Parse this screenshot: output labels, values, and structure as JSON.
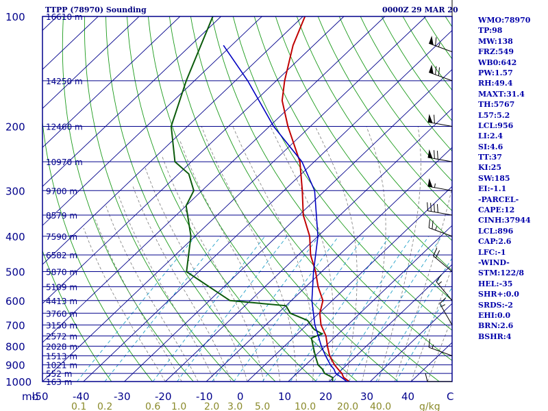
{
  "header": {
    "title": "TTPP (78970) Sounding",
    "time": "0000Z 29 MAR 20"
  },
  "indices": [
    "WMO:78970",
    "TP:98",
    "MW:138",
    "FRZ:549",
    "WB0:642",
    "PW:1.57",
    "RH:49.4",
    "MAXT:31.4",
    "TH:5767",
    "L57:5.2",
    "LCL:956",
    "LI:2.4",
    "SI:4.6",
    "TT:37",
    "KI:25",
    "SW:185",
    "EI:-1.1",
    "-PARCEL-",
    "CAPE:12",
    "CINH:37944",
    "LCL:896",
    "CAP:2.6",
    "LFC:-1",
    "-WIND-",
    "STM:122/8",
    "HEL:-35",
    "SHR+:0.0",
    "SRDS:-2",
    "EHI:0.0",
    "BRN:2.6",
    "BSHR:4"
  ],
  "colors": {
    "frame": "#00008b",
    "isobar": "#00008b",
    "isotherm": "#00008b",
    "dry_adiabat": "#1a9a1a",
    "moist_adiabat": "#7a7a7a",
    "mixing_ratio": "#20a0c8",
    "temperature": "#c00000",
    "dewpoint": "#0a5a0a",
    "parcel": "#0000c0",
    "axis_text": "#00008b",
    "mixing_text": "#8a8a2a"
  },
  "chart_data": {
    "type": "line",
    "title": "TTPP (78970) Sounding",
    "xlabel": "C",
    "ylabel": "mb",
    "xlim": [
      -50,
      50
    ],
    "ylim": [
      1000,
      100
    ],
    "y_scale": "log",
    "skew": true,
    "pressure_ticks": [
      100,
      200,
      300,
      400,
      500,
      600,
      700,
      800,
      900,
      1000
    ],
    "temperature_ticks": [
      "-50",
      "-40",
      "-30",
      "-20",
      "-10",
      "0",
      "10",
      "20",
      "30",
      "40"
    ],
    "mixing_ratio_labels": [
      "0.1",
      "0.2",
      "0.6",
      "1.0",
      "2.0",
      "3.0",
      "5.0",
      "10.0",
      "20.0",
      "40.0",
      "g/kg"
    ],
    "height_labels": [
      {
        "p": 100,
        "h": "16610 m"
      },
      {
        "p": 150,
        "h": "14250 m"
      },
      {
        "p": 200,
        "h": "12460 m"
      },
      {
        "p": 250,
        "h": "10970 m"
      },
      {
        "p": 300,
        "h": "9700 m"
      },
      {
        "p": 350,
        "h": "8579 m"
      },
      {
        "p": 400,
        "h": "7590 m"
      },
      {
        "p": 450,
        "h": "6582 m"
      },
      {
        "p": 500,
        "h": "5870 m"
      },
      {
        "p": 550,
        "h": "5109 m"
      },
      {
        "p": 600,
        "h": "4413 m"
      },
      {
        "p": 650,
        "h": "3760 m"
      },
      {
        "p": 700,
        "h": "3150 m"
      },
      {
        "p": 750,
        "h": "2572 m"
      },
      {
        "p": 800,
        "h": "2028 m"
      },
      {
        "p": 850,
        "h": "1513 m"
      },
      {
        "p": 900,
        "h": "1021 m"
      },
      {
        "p": 950,
        "h": "552 m"
      },
      {
        "p": 1000,
        "h": "163 m"
      }
    ],
    "series": [
      {
        "key": "temperature",
        "points": [
          [
            1000,
            24.9
          ],
          [
            975,
            22.5
          ],
          [
            950,
            21.0
          ],
          [
            925,
            19.0
          ],
          [
            900,
            17.0
          ],
          [
            850,
            13.5
          ],
          [
            800,
            10.5
          ],
          [
            750,
            7.5
          ],
          [
            700,
            3.5
          ],
          [
            650,
            0.2
          ],
          [
            600,
            -2.3
          ],
          [
            550,
            -7.0
          ],
          [
            500,
            -11.5
          ],
          [
            450,
            -17.0
          ],
          [
            400,
            -22.0
          ],
          [
            350,
            -29.0
          ],
          [
            300,
            -35.5
          ],
          [
            250,
            -43.5
          ],
          [
            200,
            -55.5
          ],
          [
            170,
            -63.5
          ],
          [
            150,
            -68.0
          ],
          [
            120,
            -75.0
          ],
          [
            100,
            -79.5
          ]
        ]
      },
      {
        "key": "dewpoint",
        "points": [
          [
            1000,
            20.8
          ],
          [
            975,
            19.8
          ],
          [
            950,
            16.8
          ],
          [
            925,
            15.2
          ],
          [
            900,
            13.0
          ],
          [
            850,
            10.0
          ],
          [
            800,
            7.0
          ],
          [
            760,
            4.5
          ],
          [
            740,
            6.0
          ],
          [
            720,
            3.0
          ],
          [
            700,
            1.0
          ],
          [
            680,
            -1.0
          ],
          [
            650,
            -7.0
          ],
          [
            620,
            -10.0
          ],
          [
            600,
            -25.0
          ],
          [
            500,
            -43.0
          ],
          [
            400,
            -51.0
          ],
          [
            330,
            -60.0
          ],
          [
            300,
            -62.0
          ],
          [
            270,
            -67.5
          ],
          [
            250,
            -74.0
          ],
          [
            200,
            -84.0
          ],
          [
            150,
            -92.0
          ],
          [
            100,
            -102.0
          ]
        ]
      },
      {
        "key": "parcel",
        "points": [
          [
            1000,
            24.3
          ],
          [
            975,
            22.0
          ],
          [
            950,
            19.5
          ],
          [
            925,
            18.0
          ],
          [
            900,
            16.0
          ],
          [
            850,
            12.5
          ],
          [
            800,
            9.0
          ],
          [
            700,
            2.0
          ],
          [
            600,
            -5.0
          ],
          [
            500,
            -12.0
          ],
          [
            400,
            -20.0
          ],
          [
            300,
            -32.5
          ],
          [
            250,
            -43.0
          ],
          [
            200,
            -59.0
          ],
          [
            150,
            -77.0
          ],
          [
            120,
            -92.0
          ]
        ]
      }
    ],
    "wind_barbs": [
      {
        "p": 100,
        "dir": 0,
        "kt": 25
      },
      {
        "p": 125,
        "dir": 290,
        "kt": 65
      },
      {
        "p": 150,
        "dir": 290,
        "kt": 70
      },
      {
        "p": 200,
        "dir": 280,
        "kt": 60
      },
      {
        "p": 250,
        "dir": 280,
        "kt": 70
      },
      {
        "p": 300,
        "dir": 280,
        "kt": 55
      },
      {
        "p": 350,
        "dir": 280,
        "kt": 40
      },
      {
        "p": 400,
        "dir": 290,
        "kt": 25
      },
      {
        "p": 500,
        "dir": 310,
        "kt": 20
      },
      {
        "p": 600,
        "dir": 320,
        "kt": 15
      },
      {
        "p": 700,
        "dir": 330,
        "kt": 15
      },
      {
        "p": 850,
        "dir": 290,
        "kt": 15
      },
      {
        "p": 1000,
        "dir": 270,
        "kt": 10
      }
    ]
  }
}
